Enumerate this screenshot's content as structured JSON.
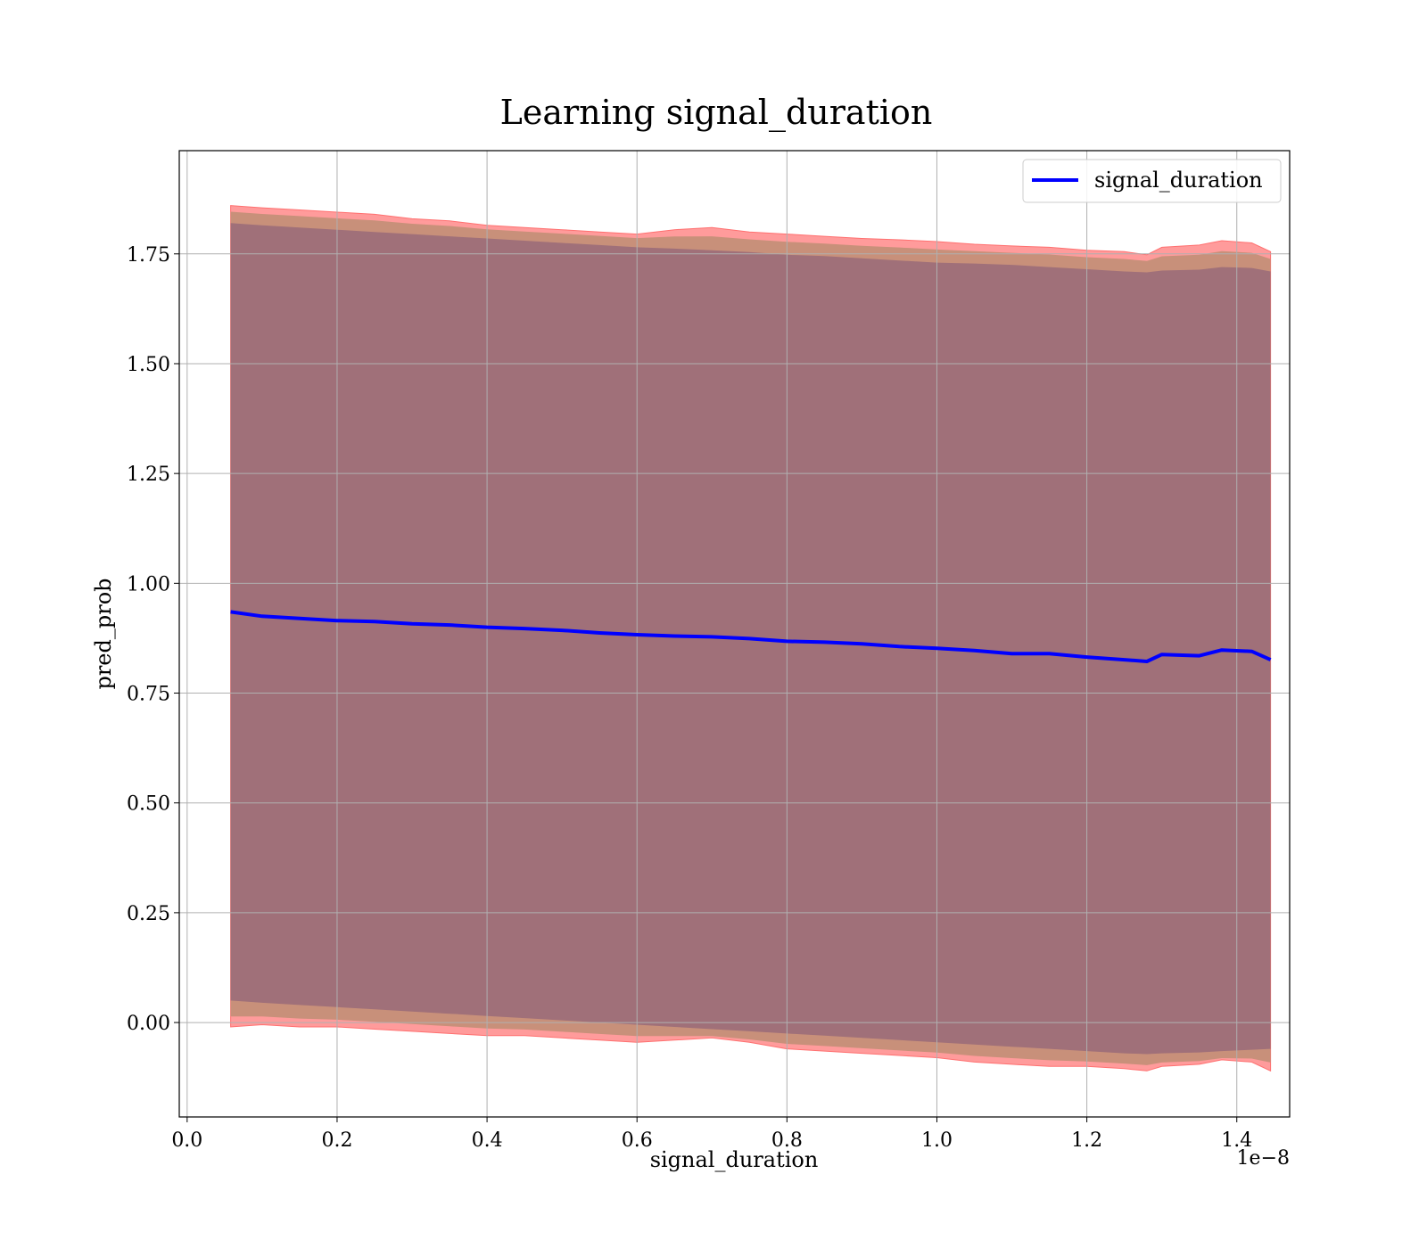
{
  "chart_data": {
    "type": "line",
    "title": "Learning signal_duration",
    "xlabel": "signal_duration",
    "ylabel": "pred_prob",
    "x_scale_label": "1e−8",
    "xlim": [
      -0.0105,
      1.4705
    ],
    "ylim": [
      -0.215,
      1.985
    ],
    "grid": true,
    "legend_position": "top-right",
    "x_ticks": [
      0.0,
      0.2,
      0.4,
      0.6,
      0.8,
      1.0,
      1.2,
      1.4
    ],
    "x_tick_labels": [
      "0.0",
      "0.2",
      "0.4",
      "0.6",
      "0.8",
      "1.0",
      "1.2",
      "1.4"
    ],
    "y_ticks": [
      0.0,
      0.25,
      0.5,
      0.75,
      1.0,
      1.25,
      1.5,
      1.75
    ],
    "y_tick_labels": [
      "0.00",
      "0.25",
      "0.50",
      "0.75",
      "1.00",
      "1.25",
      "1.50",
      "1.75"
    ],
    "series": [
      {
        "name": "signal_duration",
        "color": "#0000ff",
        "x": [
          0.058,
          0.1,
          0.15,
          0.2,
          0.25,
          0.3,
          0.35,
          0.4,
          0.45,
          0.5,
          0.55,
          0.6,
          0.65,
          0.7,
          0.75,
          0.8,
          0.85,
          0.9,
          0.95,
          1.0,
          1.05,
          1.1,
          1.15,
          1.2,
          1.25,
          1.28,
          1.3,
          1.35,
          1.38,
          1.42,
          1.445
        ],
        "mean": [
          0.935,
          0.925,
          0.92,
          0.915,
          0.913,
          0.908,
          0.905,
          0.9,
          0.897,
          0.893,
          0.887,
          0.883,
          0.88,
          0.878,
          0.874,
          0.868,
          0.866,
          0.862,
          0.856,
          0.852,
          0.847,
          0.84,
          0.84,
          0.832,
          0.826,
          0.822,
          0.838,
          0.835,
          0.848,
          0.845,
          0.826
        ],
        "upper_band": [
          1.86,
          1.855,
          1.85,
          1.845,
          1.84,
          1.83,
          1.825,
          1.815,
          1.81,
          1.805,
          1.8,
          1.795,
          1.805,
          1.81,
          1.8,
          1.795,
          1.79,
          1.785,
          1.782,
          1.778,
          1.772,
          1.768,
          1.765,
          1.758,
          1.755,
          1.748,
          1.765,
          1.77,
          1.78,
          1.775,
          1.755
        ],
        "lower_band": [
          -0.01,
          -0.005,
          -0.01,
          -0.01,
          -0.015,
          -0.02,
          -0.025,
          -0.03,
          -0.03,
          -0.035,
          -0.04,
          -0.045,
          -0.04,
          -0.035,
          -0.045,
          -0.06,
          -0.065,
          -0.07,
          -0.075,
          -0.08,
          -0.09,
          -0.095,
          -0.1,
          -0.1,
          -0.105,
          -0.11,
          -0.1,
          -0.095,
          -0.085,
          -0.09,
          -0.11
        ],
        "inner_upper": [
          1.82,
          1.815,
          1.81,
          1.805,
          1.8,
          1.795,
          1.79,
          1.785,
          1.78,
          1.775,
          1.77,
          1.765,
          1.762,
          1.758,
          1.754,
          1.748,
          1.745,
          1.74,
          1.735,
          1.73,
          1.728,
          1.725,
          1.72,
          1.715,
          1.71,
          1.708,
          1.712,
          1.714,
          1.72,
          1.718,
          1.71
        ],
        "inner_lower": [
          0.05,
          0.045,
          0.04,
          0.035,
          0.03,
          0.025,
          0.02,
          0.015,
          0.01,
          0.005,
          0.0,
          -0.005,
          -0.01,
          -0.015,
          -0.02,
          -0.025,
          -0.03,
          -0.035,
          -0.04,
          -0.045,
          -0.05,
          -0.055,
          -0.06,
          -0.065,
          -0.07,
          -0.072,
          -0.07,
          -0.068,
          -0.065,
          -0.062,
          -0.06
        ]
      }
    ]
  },
  "colors": {
    "band_outer": "#ff9b9b",
    "band_middle": "#c8907a",
    "band_inner": "#a07079",
    "line": "#0000ff"
  }
}
